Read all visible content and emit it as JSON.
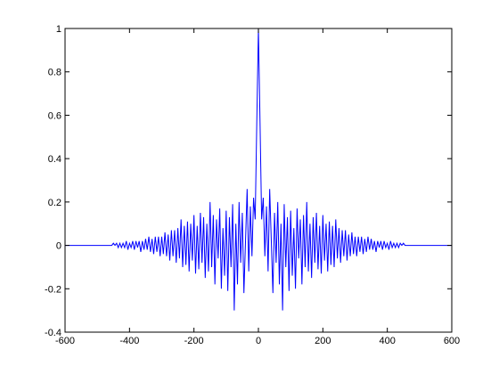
{
  "chart_data": {
    "type": "line",
    "color": "#0000ff",
    "x": [
      -600,
      -490,
      -485,
      -480,
      -475,
      -470,
      -465,
      -460,
      -455,
      -450,
      -445,
      -440,
      -435,
      -430,
      -425,
      -420,
      -415,
      -410,
      -405,
      -400,
      -395,
      -390,
      -385,
      -380,
      -375,
      -370,
      -365,
      -360,
      -355,
      -350,
      -345,
      -340,
      -335,
      -330,
      -325,
      -320,
      -315,
      -310,
      -305,
      -300,
      -295,
      -290,
      -285,
      -280,
      -275,
      -270,
      -265,
      -260,
      -255,
      -250,
      -245,
      -240,
      -235,
      -230,
      -225,
      -220,
      -215,
      -210,
      -205,
      -200,
      -195,
      -190,
      -185,
      -180,
      -175,
      -170,
      -165,
      -160,
      -155,
      -150,
      -145,
      -140,
      -135,
      -130,
      -125,
      -120,
      -115,
      -110,
      -105,
      -100,
      -95,
      -90,
      -85,
      -80,
      -75,
      -70,
      -65,
      -60,
      -55,
      -50,
      -45,
      -40,
      -35,
      -30,
      -25,
      -20,
      -15,
      -10,
      -5,
      0,
      5,
      10,
      15,
      20,
      25,
      30,
      35,
      40,
      45,
      50,
      55,
      60,
      65,
      70,
      75,
      80,
      85,
      90,
      95,
      100,
      105,
      110,
      115,
      120,
      125,
      130,
      135,
      140,
      145,
      150,
      155,
      160,
      165,
      170,
      175,
      180,
      185,
      190,
      195,
      200,
      205,
      210,
      215,
      220,
      225,
      230,
      235,
      240,
      245,
      250,
      255,
      260,
      265,
      270,
      275,
      280,
      285,
      290,
      295,
      300,
      305,
      310,
      315,
      320,
      325,
      330,
      335,
      340,
      345,
      350,
      355,
      360,
      365,
      370,
      375,
      380,
      385,
      390,
      395,
      400,
      405,
      410,
      415,
      420,
      425,
      430,
      435,
      440,
      445,
      450,
      455,
      460,
      465,
      470,
      475,
      480,
      485,
      490,
      600
    ],
    "values": [
      0,
      0,
      0,
      0,
      0,
      0,
      0,
      0,
      0,
      0.01,
      0,
      0.01,
      -0.01,
      0.01,
      -0.01,
      0.01,
      -0.01,
      0.02,
      -0.02,
      0.01,
      -0.01,
      0.02,
      -0.02,
      0.02,
      -0.01,
      0.02,
      -0.03,
      0.02,
      -0.02,
      0.03,
      -0.02,
      0.04,
      -0.03,
      0.03,
      -0.04,
      0.04,
      -0.03,
      0.04,
      -0.05,
      0.04,
      -0.04,
      0.06,
      -0.05,
      0.05,
      -0.07,
      0.07,
      -0.05,
      0.07,
      -0.08,
      0.08,
      -0.06,
      0.12,
      -0.1,
      0.09,
      -0.09,
      0.11,
      -0.12,
      0.1,
      -0.07,
      0.14,
      -0.13,
      0.09,
      -0.11,
      0.15,
      -0.08,
      0.13,
      -0.15,
      0.1,
      -0.12,
      0.2,
      -0.1,
      0.14,
      -0.18,
      0.12,
      -0.06,
      0.17,
      -0.2,
      0.08,
      -0.14,
      0.16,
      -0.21,
      0.13,
      -0.1,
      0.19,
      -0.3,
      0.1,
      -0.18,
      0.2,
      -0.08,
      0.15,
      -0.22,
      0.02,
      0.26,
      -0.12,
      0.18,
      -0.05,
      0.22,
      0.12,
      0.57,
      1,
      0.57,
      0.12,
      0.22,
      -0.05,
      0.18,
      -0.12,
      0.26,
      0.02,
      -0.22,
      0.15,
      -0.08,
      0.2,
      -0.18,
      0.1,
      -0.3,
      0.19,
      -0.1,
      0.13,
      -0.21,
      0.16,
      -0.14,
      0.08,
      -0.2,
      0.17,
      -0.06,
      0.12,
      -0.18,
      0.14,
      -0.1,
      0.2,
      -0.12,
      0.1,
      -0.15,
      0.13,
      -0.08,
      0.15,
      -0.11,
      0.09,
      -0.13,
      0.14,
      -0.07,
      0.1,
      -0.12,
      0.11,
      -0.09,
      0.09,
      -0.1,
      0.12,
      -0.06,
      0.08,
      -0.08,
      0.07,
      -0.05,
      0.07,
      -0.07,
      0.05,
      -0.05,
      0.06,
      -0.04,
      0.04,
      -0.05,
      0.04,
      -0.03,
      0.04,
      -0.04,
      0.03,
      -0.03,
      0.04,
      -0.02,
      0.03,
      -0.02,
      0.02,
      -0.03,
      0.02,
      -0.01,
      0.02,
      -0.02,
      0.02,
      -0.01,
      0.01,
      -0.02,
      0.02,
      -0.01,
      0.01,
      -0.01,
      0.01,
      -0.01,
      0.01,
      0,
      0.01,
      0,
      0,
      0,
      0,
      0,
      0,
      0,
      0,
      0
    ],
    "xlim": [
      -600,
      600
    ],
    "xticks": [
      -600,
      -400,
      -200,
      0,
      200,
      400,
      600
    ],
    "ylim": [
      -0.4,
      1
    ],
    "yticks": [
      -0.4,
      -0.2,
      0,
      0.2,
      0.4,
      0.6,
      0.8,
      1
    ]
  }
}
